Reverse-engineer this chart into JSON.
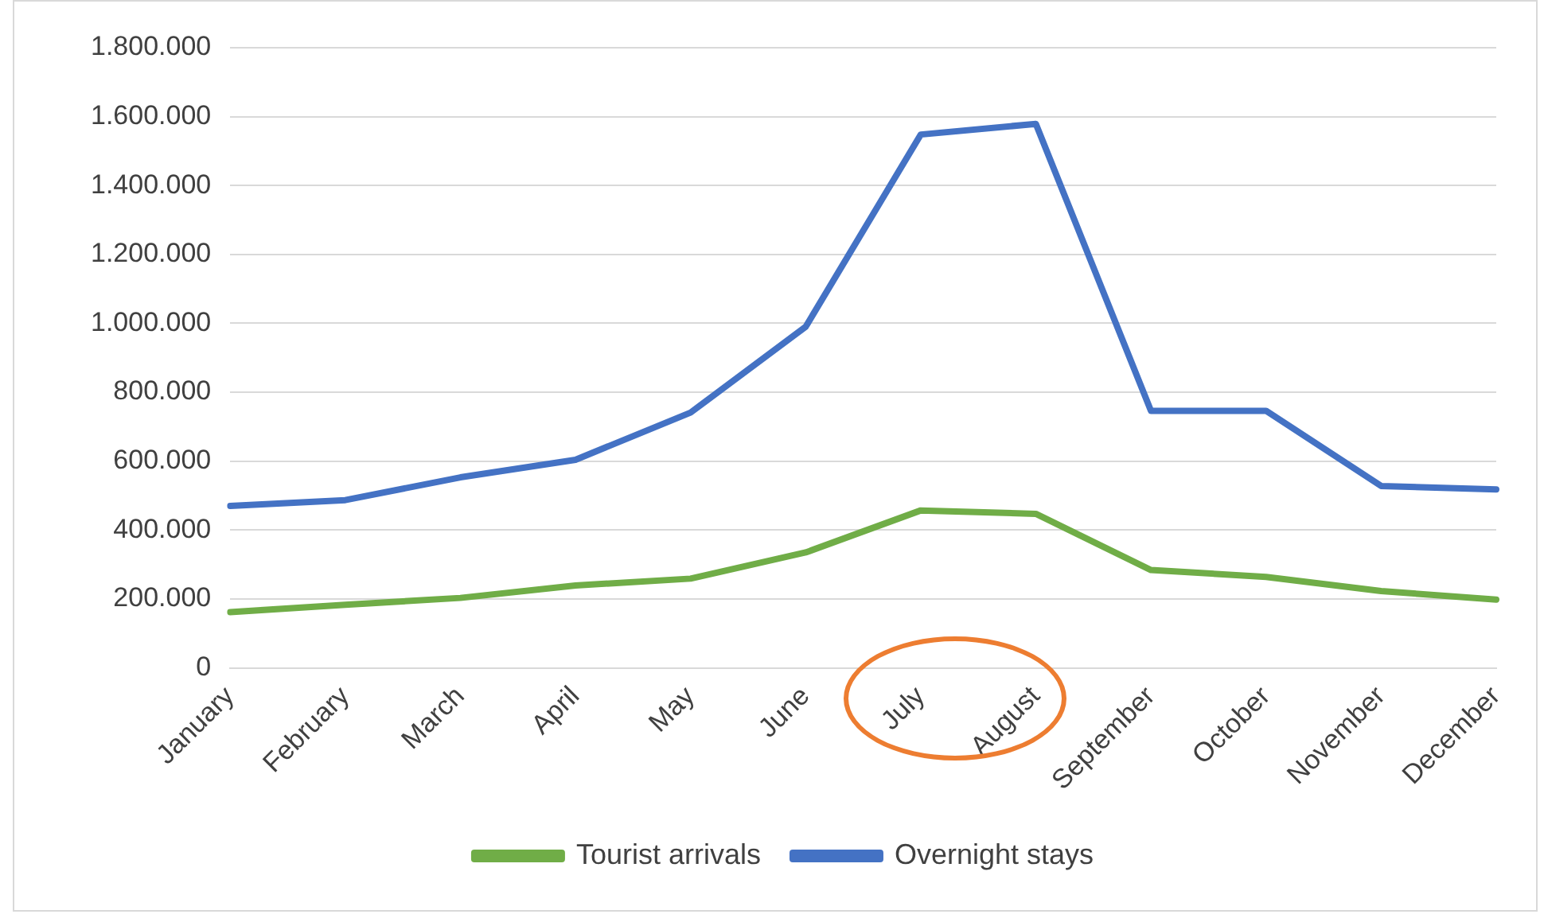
{
  "chart_data": {
    "type": "line",
    "categories": [
      "January",
      "February",
      "March",
      "April",
      "May",
      "June",
      "July",
      "August",
      "September",
      "October",
      "November",
      "December"
    ],
    "series": [
      {
        "name": "Tourist arrivals",
        "color": "#70ad47",
        "values": [
          162000,
          183000,
          203000,
          239000,
          259000,
          335000,
          457000,
          447000,
          284000,
          264000,
          223000,
          198000
        ]
      },
      {
        "name": "Overnight stays",
        "color": "#4472c4",
        "values": [
          470000,
          487000,
          553000,
          604000,
          741000,
          990000,
          1548000,
          1579000,
          746000,
          746000,
          528000,
          518000
        ]
      }
    ],
    "ylim": [
      0,
      1800000
    ],
    "yticks": [
      {
        "value": 0,
        "label": "0"
      },
      {
        "value": 200000,
        "label": "200.000"
      },
      {
        "value": 400000,
        "label": "400.000"
      },
      {
        "value": 600000,
        "label": "600.000"
      },
      {
        "value": 800000,
        "label": "800.000"
      },
      {
        "value": 1000000,
        "label": "1.000.000"
      },
      {
        "value": 1200000,
        "label": "1.200.000"
      },
      {
        "value": 1400000,
        "label": "1.400.000"
      },
      {
        "value": 1600000,
        "label": "1.600.000"
      },
      {
        "value": 1800000,
        "label": "1.800.000"
      }
    ],
    "grid": "y",
    "legend": "bottom",
    "marker": "none",
    "line_style": "solid"
  }
}
